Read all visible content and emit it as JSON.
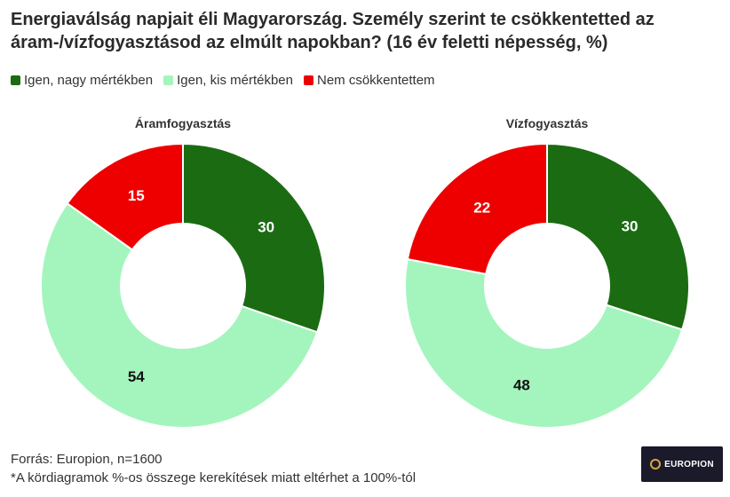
{
  "title_line1": "Energiaválság napjait éli Magyarország. Személy szerint te csökkentetted az",
  "title_line2": "áram-/vízfogyasztásod az elmúlt napokban? (16 év feletti népesség, %)",
  "colors": {
    "igen_nagy": "#1b6b12",
    "igen_kis": "#a4f5bd",
    "nem": "#ee0000"
  },
  "chart_data": [
    {
      "type": "pie",
      "title": "Áramfogyasztás",
      "categories": [
        "Igen, nagy mértékben",
        "Igen, kis mértékben",
        "Nem csökkentettem"
      ],
      "values": [
        30,
        54,
        15
      ]
    },
    {
      "type": "pie",
      "title": "Vízfogyasztás",
      "categories": [
        "Igen, nagy mértékben",
        "Igen, kis mértékben",
        "Nem csökkentettem"
      ],
      "values": [
        30,
        48,
        22
      ]
    }
  ],
  "legend": [
    {
      "label": "Igen, nagy mértékben"
    },
    {
      "label": "Igen, kis mértékben"
    },
    {
      "label": "Nem csökkentettem"
    }
  ],
  "footer": {
    "source": "Forrás: Europion, n=1600",
    "note": "*A kördiagramok %-os összege kerekítések miatt eltérhet a 100%-tól"
  },
  "logo": {
    "text": "EUROPION"
  }
}
